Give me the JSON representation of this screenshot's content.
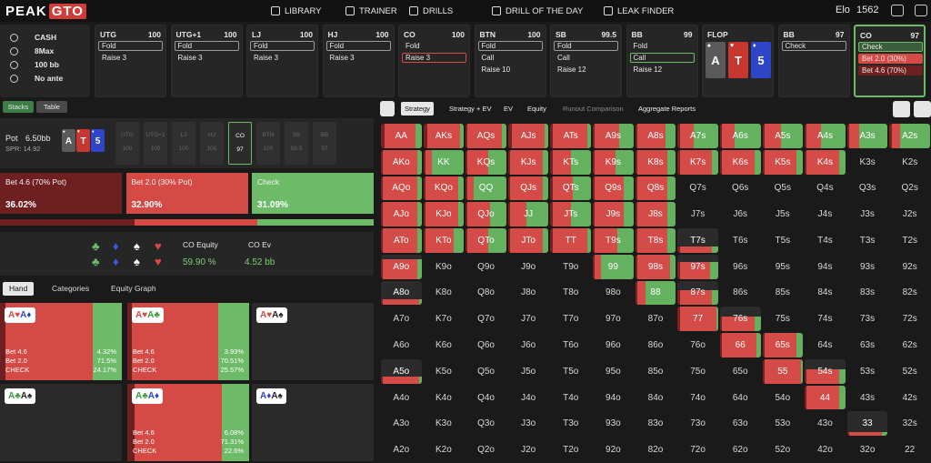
{
  "header": {
    "logo_a": "PEAK",
    "logo_b": "GTO",
    "nav": [
      "LIBRARY",
      "TRAINER",
      "DRILLS",
      "DRILL OF THE DAY",
      "LEAK FINDER"
    ],
    "elo_label": "Elo",
    "elo": 1562
  },
  "settings": [
    "CASH",
    "8Max",
    "100 bb",
    "No ante"
  ],
  "positions": [
    {
      "name": "UTG",
      "stack": 100,
      "actions": [
        "Fold",
        "Raise 3"
      ],
      "selected": 0,
      "selected_color": "#9a9a9a"
    },
    {
      "name": "UTG+1",
      "stack": 100,
      "actions": [
        "Fold",
        "Raise 3"
      ],
      "selected": 0,
      "selected_color": "#9a9a9a"
    },
    {
      "name": "LJ",
      "stack": 100,
      "actions": [
        "Fold",
        "Raise 3"
      ],
      "selected": 0,
      "selected_color": "#9a9a9a"
    },
    {
      "name": "HJ",
      "stack": 100,
      "actions": [
        "Fold",
        "Raise 3"
      ],
      "selected": 0,
      "selected_color": "#9a9a9a"
    },
    {
      "name": "CO",
      "stack": 100,
      "actions": [
        "Fold",
        "Raise 3"
      ],
      "selected": 1,
      "selected_color": "#d64a45"
    },
    {
      "name": "BTN",
      "stack": 100,
      "actions": [
        "Fold",
        "Call",
        "Raise 10"
      ],
      "selected": 0,
      "selected_color": "#9a9a9a"
    },
    {
      "name": "SB",
      "stack": 99.5,
      "actions": [
        "Fold",
        "Call",
        "Raise 12"
      ],
      "selected": 0,
      "selected_color": "#9a9a9a"
    },
    {
      "name": "BB",
      "stack": 99,
      "actions": [
        "Fold",
        "Call",
        "Raise 12"
      ],
      "selected": 1,
      "selected_color": "#6dbb69"
    }
  ],
  "flop": {
    "name": "FLOP",
    "cards": [
      {
        "rank": "A",
        "suit": "♠",
        "color": "#5a5a5a"
      },
      {
        "rank": "T",
        "suit": "♥",
        "color": "#c7372f"
      },
      {
        "rank": "5",
        "suit": "♦",
        "color": "#2f45c7"
      }
    ]
  },
  "postflop": [
    {
      "name": "BB",
      "stack": 97,
      "actions": [
        "Check"
      ],
      "selected": 0,
      "selected_color": "#9a9a9a"
    },
    {
      "name": "CO",
      "stack": 97,
      "actions": [
        "Check",
        "Bet 2.0 (30%)",
        "Bet 4.6 (70%)"
      ],
      "selected": 0,
      "selected_color": "#6dbb69",
      "action_colors": [
        null,
        "#d64a45",
        "#6e1f1f"
      ],
      "active": true
    }
  ],
  "stacks": {
    "tabs": [
      "Stacks",
      "Table"
    ],
    "active": 0,
    "pot_label": "Pot",
    "pot": "6.50bb",
    "spr": "SPR: 14.92",
    "seats": [
      {
        "name": "UTG",
        "stack": 100
      },
      {
        "name": "UTG+1",
        "stack": 100
      },
      {
        "name": "LJ",
        "stack": 100
      },
      {
        "name": "HJ",
        "stack": 100
      },
      {
        "name": "CO",
        "stack": 97
      },
      {
        "name": "BTN",
        "stack": 100
      },
      {
        "name": "SB",
        "stack": 99.5
      },
      {
        "name": "BB",
        "stack": 97
      }
    ],
    "active_seat": 4
  },
  "actions": [
    {
      "label": "Bet 4.6 (70% Pot)",
      "value": 36.02,
      "value_label": "36.02%",
      "color": "#6e1f1f"
    },
    {
      "label": "Bet 2.0 (30% Pot)",
      "value": 32.9,
      "value_label": "32.90%",
      "color": "#d64a45"
    },
    {
      "label": "Check",
      "value": 31.09,
      "value_label": "31.09%",
      "color": "#6dbb69"
    }
  ],
  "equity": {
    "suits": [
      {
        "s": "♣",
        "color": "#6dbb69"
      },
      {
        "s": "♦",
        "color": "#3a57e8"
      },
      {
        "s": "♠",
        "color": "#ffffff"
      },
      {
        "s": "♥",
        "color": "#d64a45"
      }
    ],
    "items": [
      {
        "label": "CO Equity",
        "value": "59.90 %"
      },
      {
        "label": "CO Ev",
        "value": "4.52 bb"
      }
    ]
  },
  "hand_tabs": {
    "tabs": [
      "Hand",
      "Categories",
      "Equity Graph"
    ],
    "active": 0
  },
  "combos": [
    {
      "cards": [
        {
          "c": "A♥",
          "color": "#d64a45"
        },
        {
          "c": "A♦",
          "color": "#2f45c7"
        }
      ],
      "lines": [
        "Bet 4.6",
        "Bet 2.0",
        "CHECK"
      ],
      "values": [
        4.32,
        71.5,
        24.17
      ],
      "value_labels": [
        "4.32%",
        "71.5%",
        "24.17%"
      ]
    },
    {
      "cards": [
        {
          "c": "A♥",
          "color": "#d64a45"
        },
        {
          "c": "A♣",
          "color": "#3c9a3c"
        }
      ],
      "lines": [
        "Bet 4.6",
        "Bet 2.0",
        "CHECK"
      ],
      "values": [
        3.93,
        70.51,
        25.57
      ],
      "value_labels": [
        "3.93%",
        "70.51%",
        "25.57%"
      ]
    },
    {
      "cards": [
        {
          "c": "A♥",
          "color": "#d64a45"
        },
        {
          "c": "A♠",
          "color": "#222222"
        }
      ]
    },
    {
      "cards": [
        {
          "c": "A♣",
          "color": "#3c9a3c"
        },
        {
          "c": "A♠",
          "color": "#222222"
        }
      ]
    },
    {
      "cards": [
        {
          "c": "A♣",
          "color": "#3c9a3c"
        },
        {
          "c": "A♦",
          "color": "#2f45c7"
        }
      ],
      "lines": [
        "Bet 4.6",
        "Bet 2.0",
        "CHECK"
      ],
      "values": [
        6.08,
        71.31,
        22.6
      ],
      "value_labels": [
        "6.08%",
        "71.31%",
        "22.6%"
      ]
    },
    {
      "cards": [
        {
          "c": "A♦",
          "color": "#2f45c7"
        },
        {
          "c": "A♠",
          "color": "#222222"
        }
      ]
    }
  ],
  "matrix": {
    "tabs": [
      "Strategy",
      "Strategy + EV",
      "EV",
      "Equity",
      "Runout Comparison",
      "Aggregate Reports"
    ],
    "active": 0,
    "disabled": [
      4
    ],
    "colors": [
      "#7a2222",
      "#d44b47",
      "#64b15f"
    ],
    "labels": [
      [
        "AA",
        "AKs",
        "AQs",
        "AJs",
        "ATs",
        "A9s",
        "A8s",
        "A7s",
        "A6s",
        "A5s",
        "A4s",
        "A3s",
        "A2s"
      ],
      [
        "AKo",
        "KK",
        "KQs",
        "KJs",
        "KTs",
        "K9s",
        "K8s",
        "K7s",
        "K6s",
        "K5s",
        "K4s",
        "K3s",
        "K2s"
      ],
      [
        "AQo",
        "KQo",
        "QQ",
        "QJs",
        "QTs",
        "Q9s",
        "Q8s",
        "Q7s",
        "Q6s",
        "Q5s",
        "Q4s",
        "Q3s",
        "Q2s"
      ],
      [
        "AJo",
        "KJo",
        "QJo",
        "JJ",
        "JTs",
        "J9s",
        "J8s",
        "J7s",
        "J6s",
        "J5s",
        "J4s",
        "J3s",
        "J2s"
      ],
      [
        "ATo",
        "KTo",
        "QTo",
        "JTo",
        "TT",
        "T9s",
        "T8s",
        "T7s",
        "T6s",
        "T5s",
        "T4s",
        "T3s",
        "T2s"
      ],
      [
        "A9o",
        "K9o",
        "Q9o",
        "J9o",
        "T9o",
        "99",
        "98s",
        "97s",
        "96s",
        "95s",
        "94s",
        "93s",
        "92s"
      ],
      [
        "A8o",
        "K8o",
        "Q8o",
        "J8o",
        "T8o",
        "98o",
        "88",
        "87s",
        "86s",
        "85s",
        "84s",
        "83s",
        "82s"
      ],
      [
        "A7o",
        "K7o",
        "Q7o",
        "J7o",
        "T7o",
        "97o",
        "87o",
        "77",
        "76s",
        "75s",
        "74s",
        "73s",
        "72s"
      ],
      [
        "A6o",
        "K6o",
        "Q6o",
        "J6o",
        "T6o",
        "96o",
        "86o",
        "76o",
        "66",
        "65s",
        "64s",
        "63s",
        "62s"
      ],
      [
        "A5o",
        "K5o",
        "Q5o",
        "J5o",
        "T5o",
        "95o",
        "85o",
        "75o",
        "65o",
        "55",
        "54s",
        "53s",
        "52s"
      ],
      [
        "A4o",
        "K4o",
        "Q4o",
        "J4o",
        "T4o",
        "94o",
        "84o",
        "74o",
        "64o",
        "54o",
        "44",
        "43s",
        "42s"
      ],
      [
        "A3o",
        "K3o",
        "Q3o",
        "J3o",
        "T3o",
        "93o",
        "83o",
        "73o",
        "63o",
        "53o",
        "43o",
        "33",
        "32s"
      ],
      [
        "A2o",
        "K2o",
        "Q2o",
        "J2o",
        "T2o",
        "92o",
        "82o",
        "72o",
        "62o",
        "52o",
        "42o",
        "32o",
        "22"
      ]
    ],
    "strategy": [
      [
        [
          10,
          75,
          15,
          100
        ],
        [
          10,
          80,
          10,
          100
        ],
        [
          5,
          85,
          10,
          100
        ],
        [
          10,
          80,
          10,
          100
        ],
        [
          5,
          85,
          10,
          100
        ],
        [
          5,
          60,
          35,
          100
        ],
        [
          5,
          70,
          25,
          100
        ],
        [
          5,
          35,
          60,
          100
        ],
        [
          5,
          30,
          65,
          100
        ],
        [
          5,
          40,
          55,
          100
        ],
        [
          5,
          35,
          60,
          100
        ],
        [
          5,
          25,
          70,
          100
        ],
        [
          5,
          20,
          75,
          100
        ]
      ],
      [
        [
          5,
          85,
          10,
          100
        ],
        [
          5,
          15,
          80,
          100
        ],
        [
          5,
          50,
          45,
          100
        ],
        [
          5,
          80,
          15,
          100
        ],
        [
          5,
          45,
          50,
          100
        ],
        [
          5,
          50,
          45,
          100
        ],
        [
          5,
          75,
          20,
          100
        ],
        [
          5,
          80,
          15,
          100
        ],
        [
          5,
          80,
          15,
          100
        ],
        [
          5,
          80,
          15,
          100
        ],
        [
          5,
          80,
          15,
          100
        ],
        null,
        null
      ],
      [
        [
          5,
          85,
          10,
          100
        ],
        [
          5,
          80,
          15,
          100
        ],
        [
          5,
          15,
          80,
          100
        ],
        [
          5,
          80,
          15,
          100
        ],
        [
          5,
          50,
          45,
          100
        ],
        [
          5,
          70,
          25,
          100
        ],
        [
          5,
          75,
          20,
          100
        ],
        null,
        null,
        null,
        null,
        null,
        null
      ],
      [
        [
          5,
          85,
          10,
          100
        ],
        [
          5,
          80,
          15,
          100
        ],
        [
          5,
          55,
          40,
          100
        ],
        [
          5,
          40,
          55,
          100
        ],
        [
          5,
          45,
          50,
          100
        ],
        [
          5,
          70,
          25,
          100
        ],
        [
          5,
          75,
          20,
          100
        ],
        null,
        null,
        null,
        null,
        null,
        null
      ],
      [
        [
          5,
          85,
          10,
          100
        ],
        [
          5,
          70,
          25,
          100
        ],
        [
          5,
          50,
          45,
          100
        ],
        [
          5,
          80,
          15,
          100
        ],
        [
          5,
          85,
          10,
          100
        ],
        [
          5,
          55,
          40,
          100
        ],
        [
          5,
          75,
          20,
          100
        ],
        [
          5,
          80,
          15,
          25
        ],
        null,
        null,
        null,
        null,
        null
      ],
      [
        [
          5,
          85,
          10,
          80
        ],
        null,
        null,
        null,
        null,
        [
          5,
          15,
          80,
          100
        ],
        [
          5,
          80,
          15,
          100
        ],
        [
          5,
          75,
          20,
          70
        ],
        null,
        null,
        null,
        null,
        null
      ],
      [
        [
          5,
          90,
          5,
          25
        ],
        null,
        null,
        null,
        null,
        null,
        [
          5,
          20,
          75,
          100
        ],
        [
          5,
          80,
          15,
          60
        ],
        null,
        null,
        null,
        null,
        null
      ],
      [
        null,
        null,
        null,
        null,
        null,
        null,
        null,
        [
          5,
          90,
          5,
          100
        ],
        [
          5,
          80,
          15,
          60
        ],
        null,
        null,
        null,
        null
      ],
      [
        null,
        null,
        null,
        null,
        null,
        null,
        null,
        null,
        [
          5,
          85,
          10,
          100
        ],
        [
          5,
          80,
          15,
          100
        ],
        null,
        null,
        null
      ],
      [
        [
          5,
          90,
          5,
          30
        ],
        null,
        null,
        null,
        null,
        null,
        null,
        null,
        null,
        [
          5,
          90,
          5,
          100
        ],
        [
          5,
          80,
          15,
          60
        ],
        null,
        null
      ],
      [
        null,
        null,
        null,
        null,
        null,
        null,
        null,
        null,
        null,
        null,
        [
          5,
          80,
          15,
          100
        ],
        null,
        null
      ],
      [
        null,
        null,
        null,
        null,
        null,
        null,
        null,
        null,
        null,
        null,
        null,
        [
          5,
          80,
          15,
          15
        ],
        null
      ],
      [
        null,
        null,
        null,
        null,
        null,
        null,
        null,
        null,
        null,
        null,
        null,
        null,
        null
      ]
    ]
  }
}
